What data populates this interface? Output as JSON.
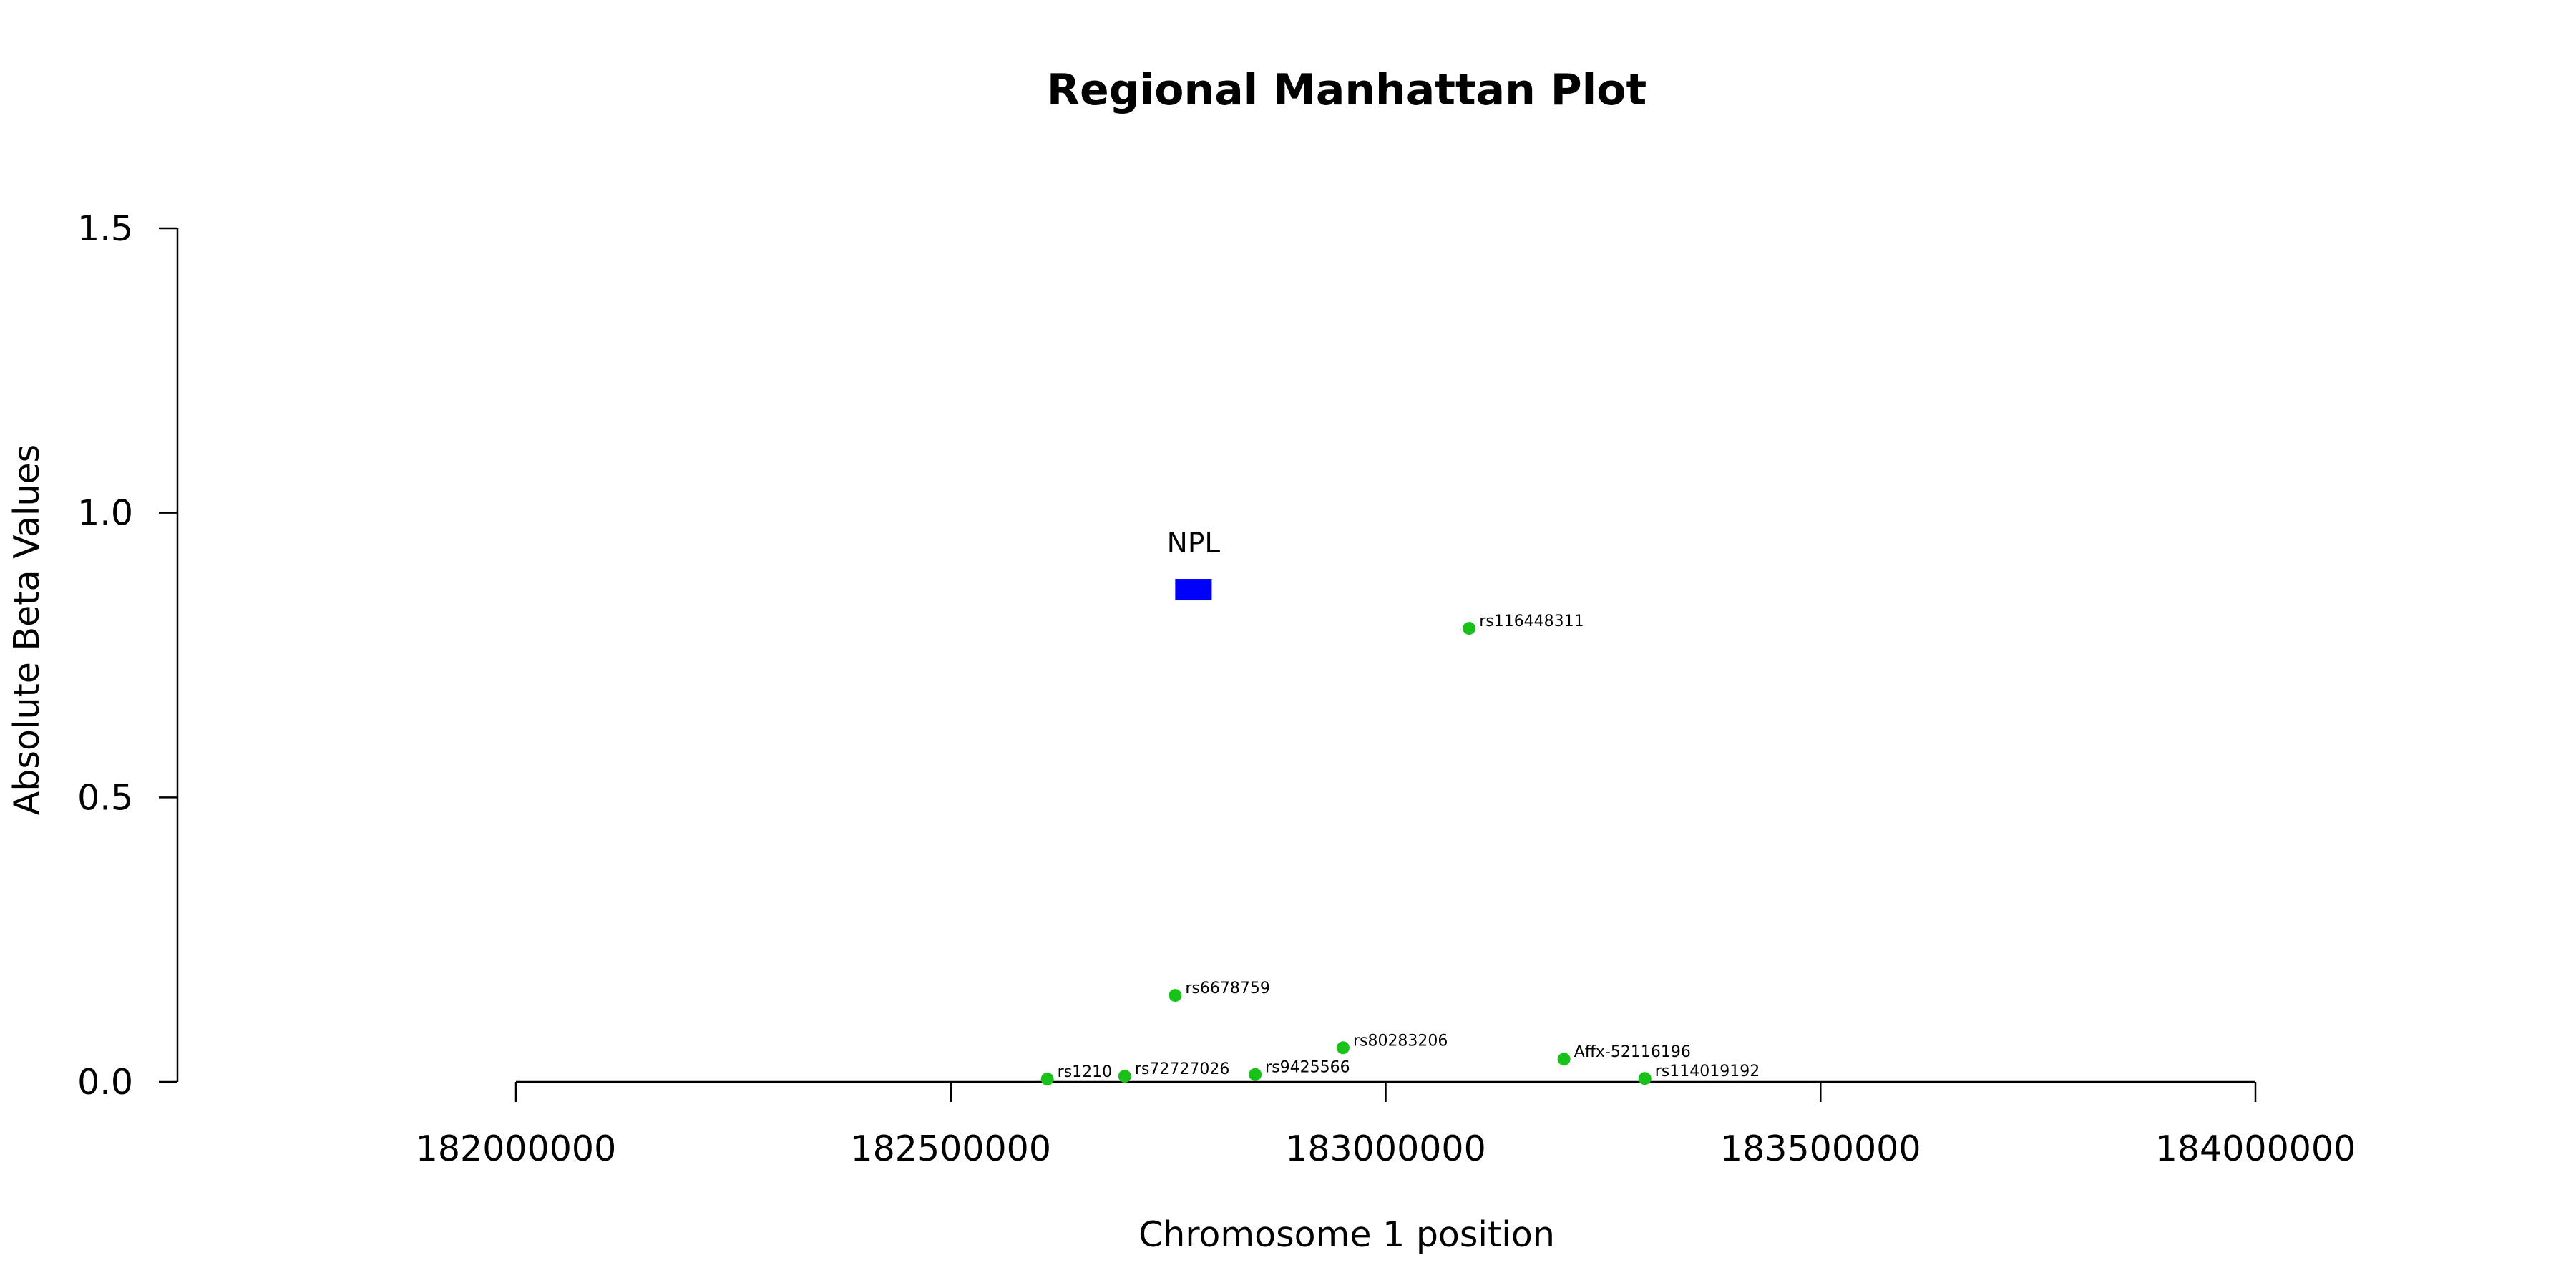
{
  "chart_data": {
    "type": "scatter",
    "title": "Regional Manhattan Plot",
    "xlabel": "Chromosome 1 position",
    "ylabel": "Absolute Beta Values",
    "xlim": [
      181610000,
      184600000
    ],
    "ylim": [
      0,
      1.5
    ],
    "x_ticks": [
      182000000,
      182500000,
      183000000,
      183500000,
      184000000
    ],
    "x_tick_labels": [
      "182000000",
      "182500000",
      "183000000",
      "183500000",
      "184000000"
    ],
    "y_ticks": [
      0,
      0.5,
      1.0,
      1.5
    ],
    "y_tick_labels": [
      "0.0",
      "0.5",
      "1.0",
      "1.5"
    ],
    "point_color": "#19c219",
    "gene_color": "#0000ff",
    "grid": false,
    "points": [
      {
        "snp": "rs1210",
        "x": 182611000,
        "y": 0.005
      },
      {
        "snp": "rs72727026",
        "x": 182700000,
        "y": 0.01
      },
      {
        "snp": "rs6678759",
        "x": 182758000,
        "y": 0.152
      },
      {
        "snp": "rs9425566",
        "x": 182850000,
        "y": 0.013
      },
      {
        "snp": "rs80283206",
        "x": 182951000,
        "y": 0.06
      },
      {
        "snp": "rs116448311",
        "x": 183096000,
        "y": 0.797
      },
      {
        "snp": "Affx-52116196",
        "x": 183205000,
        "y": 0.04
      },
      {
        "snp": "rs114019192",
        "x": 183298000,
        "y": 0.006
      }
    ],
    "genes": [
      {
        "name": "NPL",
        "start": 182758000,
        "end": 182800000,
        "y": 0.865
      }
    ]
  }
}
